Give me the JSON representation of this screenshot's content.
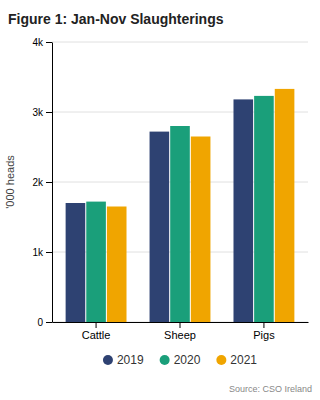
{
  "chart_data": {
    "type": "bar",
    "title": "Figure 1: Jan-Nov Slaughterings",
    "categories": [
      "Cattle",
      "Sheep",
      "Pigs"
    ],
    "series": [
      {
        "name": "2019",
        "color": "#2e4272",
        "values": [
          1700,
          2720,
          3180
        ]
      },
      {
        "name": "2020",
        "color": "#1a9f7a",
        "values": [
          1720,
          2800,
          3230
        ]
      },
      {
        "name": "2021",
        "color": "#f0a500",
        "values": [
          1650,
          2650,
          3330
        ]
      }
    ],
    "ylabel": "'000 heads",
    "ylim": [
      0,
      4000
    ],
    "yticks": [
      0,
      {
        "value": 1000,
        "label": "1k"
      },
      {
        "value": 2000,
        "label": "2k"
      },
      {
        "value": 3000,
        "label": "3k"
      },
      {
        "value": 4000,
        "label": "4k"
      }
    ],
    "grid": true,
    "legend": "bottom",
    "annotations": [
      "Source: CSO Ireland"
    ]
  }
}
